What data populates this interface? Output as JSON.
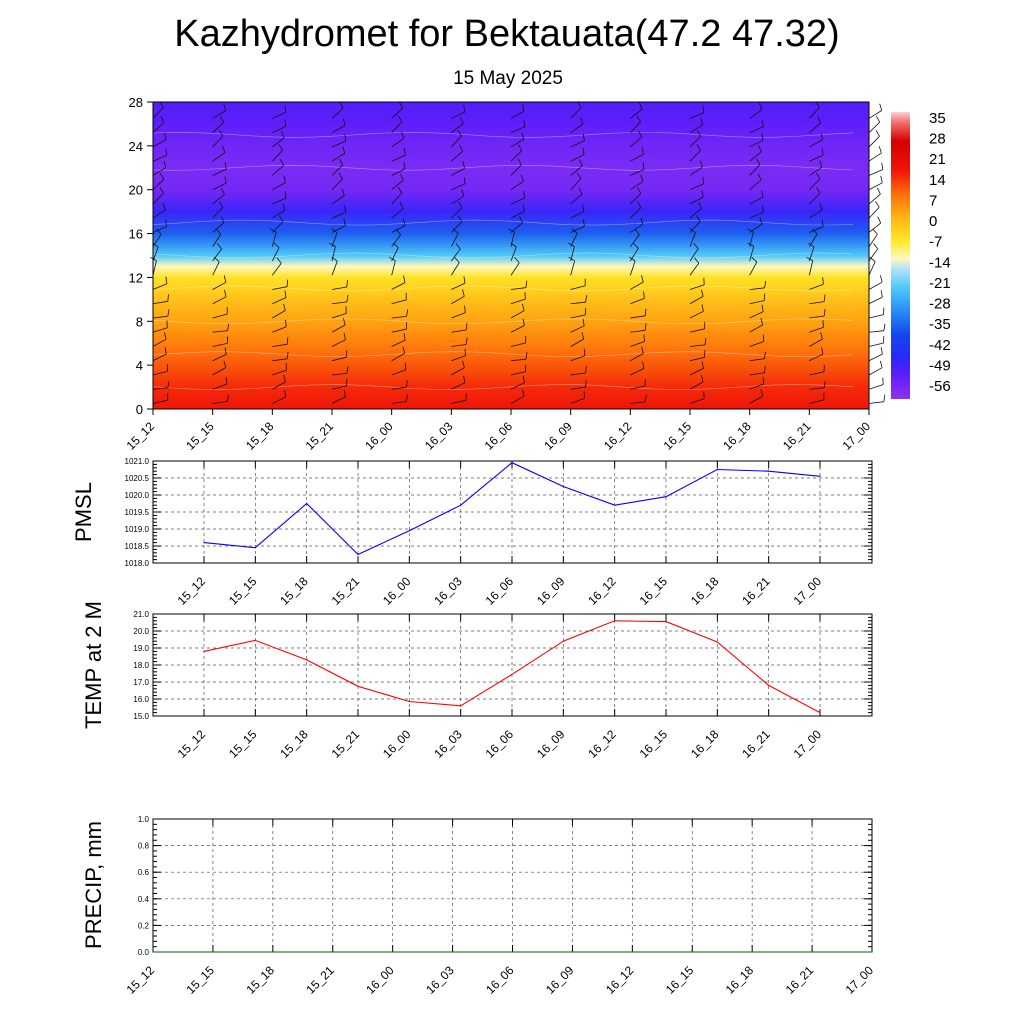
{
  "title": "Kazhydromet for Bektauata(47.2 47.32)",
  "subtitle": "15 May 2025",
  "time_labels": [
    "15_12",
    "15_15",
    "15_18",
    "15_21",
    "16_00",
    "16_03",
    "16_06",
    "16_09",
    "16_12",
    "16_15",
    "16_18",
    "16_21",
    "17_00"
  ],
  "chart_data": [
    {
      "type": "heatmap",
      "name": "vertical-cross-section",
      "x": [
        "15_12",
        "15_15",
        "15_18",
        "15_21",
        "16_00",
        "16_03",
        "16_06",
        "16_09",
        "16_12",
        "16_15",
        "16_18",
        "16_21",
        "17_00"
      ],
      "ylim": [
        0,
        28
      ],
      "y_ticks": [
        0,
        4,
        8,
        12,
        16,
        20,
        24,
        28
      ],
      "levels": [
        0,
        2,
        4,
        6,
        8,
        10,
        12,
        13,
        14,
        16,
        18,
        20,
        22,
        24,
        26,
        28
      ],
      "values_by_level": [
        18,
        16,
        12,
        8,
        4,
        0,
        -5,
        -12,
        -22,
        -35,
        -48,
        -56,
        -57,
        -55,
        -52,
        -50
      ],
      "colorbar_labels": [
        "35",
        "28",
        "21",
        "14",
        "7",
        "0",
        "-7",
        "-14",
        "-21",
        "-28",
        "-35",
        "-42",
        "-49",
        "-56"
      ],
      "colorbar_range": [
        -60,
        38
      ],
      "wind_barbs": true
    },
    {
      "type": "line",
      "name": "pmsl",
      "ylabel": "PMSL",
      "x": [
        "15_12",
        "15_15",
        "15_18",
        "15_21",
        "16_00",
        "16_03",
        "16_06",
        "16_09",
        "16_12",
        "16_15",
        "16_18",
        "16_21",
        "17_00"
      ],
      "values": [
        1018.6,
        1018.45,
        1019.75,
        1018.25,
        1018.95,
        1019.7,
        1020.95,
        1020.25,
        1019.7,
        1019.95,
        1020.75,
        1020.7,
        1020.55
      ],
      "ylim": [
        1018.0,
        1021.0
      ],
      "y_ticks": [
        "1018.0",
        "1018.5",
        "1019.0",
        "1019.5",
        "1020.0",
        "1020.5",
        "1021.0"
      ],
      "color": "#0000ff",
      "grid": true
    },
    {
      "type": "line",
      "name": "temp-2m",
      "ylabel": "TEMP at 2 M",
      "x": [
        "15_12",
        "15_15",
        "15_18",
        "15_21",
        "16_00",
        "16_03",
        "16_06",
        "16_09",
        "16_12",
        "16_15",
        "16_18",
        "16_21",
        "17_00"
      ],
      "values": [
        18.8,
        19.45,
        18.3,
        16.75,
        15.85,
        15.6,
        17.45,
        19.4,
        20.6,
        20.55,
        19.35,
        16.8,
        15.2
      ],
      "ylim": [
        15.0,
        21.0
      ],
      "y_ticks": [
        "15.0",
        "16.0",
        "17.0",
        "18.0",
        "19.0",
        "20.0",
        "21.0"
      ],
      "color": "#ff0000",
      "grid": true
    },
    {
      "type": "line",
      "name": "precip",
      "ylabel": "PRECIP, mm",
      "x": [
        "15_12",
        "15_15",
        "15_18",
        "15_21",
        "16_00",
        "16_03",
        "16_06",
        "16_09",
        "16_12",
        "16_15",
        "16_18",
        "16_21",
        "17_00"
      ],
      "values": [
        0,
        0,
        0,
        0,
        0,
        0,
        0,
        0,
        0,
        0,
        0,
        0,
        0
      ],
      "ylim": [
        0.0,
        1.0
      ],
      "y_ticks": [
        "0.0",
        "0.2",
        "0.4",
        "0.6",
        "0.8",
        "1.0"
      ],
      "color": "#006400",
      "grid": true
    }
  ]
}
